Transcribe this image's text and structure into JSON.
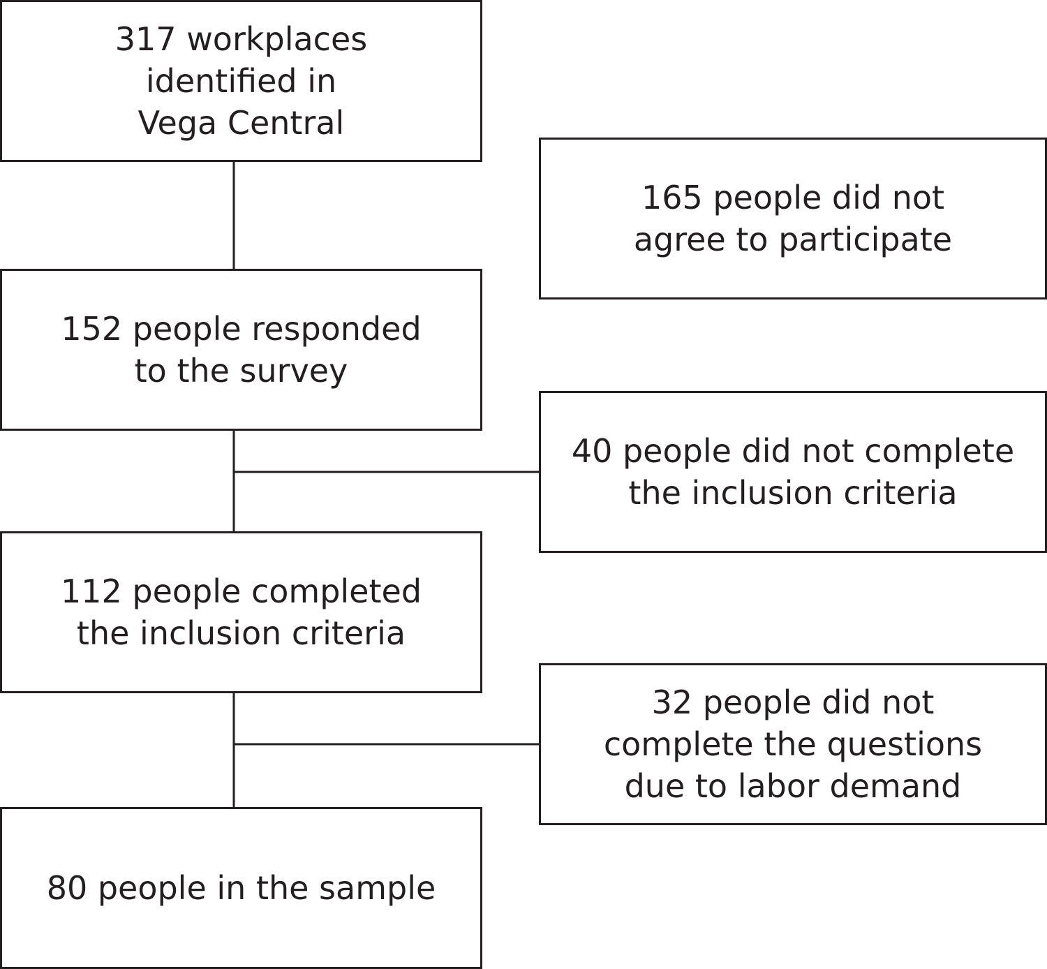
{
  "flow": {
    "workplaces": {
      "lines": [
        "317 workplaces",
        "identified in",
        "Vega Central"
      ]
    },
    "responded": {
      "lines": [
        "152 people responded",
        "to the survey"
      ]
    },
    "completed_criteria": {
      "lines": [
        "112 people completed",
        "the inclusion criteria"
      ]
    },
    "sample": {
      "lines": [
        "80 people in the sample"
      ]
    }
  },
  "exclusions": {
    "did_not_agree": {
      "lines": [
        "165 people did not",
        "agree to participate"
      ]
    },
    "did_not_complete_criteria": {
      "lines": [
        "40 people did not complete",
        "the inclusion criteria"
      ]
    },
    "did_not_complete_questions": {
      "lines": [
        "32 people did not",
        "complete the questions",
        "due to labor demand"
      ]
    }
  },
  "colors": {
    "stroke": "#231f20",
    "background": "#ffffff",
    "text": "#231f20"
  }
}
